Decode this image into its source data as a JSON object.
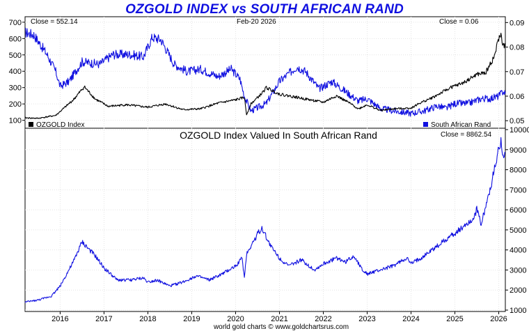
{
  "title": "OZGOLD INDEX vs SOUTH AFRICAN RAND",
  "footer": "world gold charts © www.goldchartsrus.com",
  "colors": {
    "title": "#1010e0",
    "ozgold": "#000000",
    "zar": "#1010e0",
    "valued": "#1010e0"
  },
  "chart_data": [
    {
      "type": "line",
      "title": "",
      "date_label": "Feb-20  2026",
      "x_ticks": [
        "2016",
        "2017",
        "2018",
        "2019",
        "2020",
        "2021",
        "2022",
        "2023",
        "2024",
        "2025",
        "2026"
      ],
      "x_range": [
        2015.2,
        2026.15
      ],
      "left_axis": {
        "ticks": [
          100,
          200,
          300,
          400,
          500,
          600,
          700
        ],
        "ylim": [
          60,
          725
        ]
      },
      "right_axis": {
        "ticks": [
          0.05,
          0.06,
          0.07,
          0.08,
          0.09
        ],
        "ylim": [
          0.0475,
          0.0918
        ]
      },
      "left_close": "Close = 552.14",
      "right_close": "Close = 0.06",
      "legend": [
        {
          "name": "OZGOLD Index",
          "color": "#000000"
        },
        {
          "name": "South African Rand",
          "color": "#1010e0"
        }
      ],
      "series": [
        {
          "name": "OZGOLD Index",
          "axis": "left",
          "x": [
            2015.2,
            2015.5,
            2015.9,
            2016.3,
            2016.55,
            2016.8,
            2017.1,
            2017.5,
            2018.0,
            2018.4,
            2018.8,
            2019.2,
            2019.6,
            2020.0,
            2020.2,
            2020.25,
            2020.35,
            2020.6,
            2020.7,
            2021.0,
            2021.3,
            2021.6,
            2022.0,
            2022.3,
            2022.6,
            2022.8,
            2023.0,
            2023.3,
            2023.6,
            2024.0,
            2024.2,
            2024.5,
            2024.9,
            2025.2,
            2025.5,
            2025.7,
            2025.9,
            2026.0,
            2026.05,
            2026.1,
            2026.15
          ],
          "values": [
            115,
            112,
            130,
            225,
            305,
            230,
            185,
            195,
            180,
            200,
            165,
            170,
            205,
            225,
            240,
            135,
            200,
            265,
            300,
            260,
            245,
            230,
            210,
            250,
            205,
            170,
            195,
            160,
            170,
            175,
            205,
            240,
            300,
            330,
            380,
            390,
            490,
            600,
            620,
            560,
            552
          ]
        },
        {
          "name": "South African Rand",
          "axis": "right",
          "x": [
            2015.2,
            2015.4,
            2015.7,
            2015.9,
            2016.0,
            2016.2,
            2016.5,
            2016.9,
            2017.2,
            2017.6,
            2017.9,
            2018.1,
            2018.3,
            2018.6,
            2018.9,
            2019.2,
            2019.6,
            2019.9,
            2020.1,
            2020.2,
            2020.35,
            2020.7,
            2021.0,
            2021.4,
            2021.6,
            2021.9,
            2022.2,
            2022.5,
            2022.8,
            2023.0,
            2023.3,
            2023.6,
            2024.0,
            2024.3,
            2024.6,
            2024.8,
            2025.0,
            2025.3,
            2025.6,
            2025.8,
            2026.0,
            2026.1,
            2026.15
          ],
          "values": [
            0.086,
            0.085,
            0.077,
            0.07,
            0.064,
            0.066,
            0.074,
            0.073,
            0.077,
            0.077,
            0.076,
            0.084,
            0.083,
            0.073,
            0.07,
            0.071,
            0.068,
            0.071,
            0.067,
            0.06,
            0.054,
            0.057,
            0.066,
            0.072,
            0.07,
            0.063,
            0.066,
            0.062,
            0.058,
            0.059,
            0.055,
            0.054,
            0.053,
            0.054,
            0.056,
            0.055,
            0.057,
            0.057,
            0.059,
            0.059,
            0.06,
            0.062,
            0.061
          ]
        }
      ]
    },
    {
      "type": "line",
      "title": "OZGOLD Index Valued In South African Rand",
      "close_label": "Close = 8862.54",
      "x_ticks": [
        "2016",
        "2017",
        "2018",
        "2019",
        "2020",
        "2021",
        "2022",
        "2023",
        "2024",
        "2025",
        "2026"
      ],
      "x_range": [
        2015.2,
        2026.15
      ],
      "right_axis": {
        "ticks": [
          1000,
          2000,
          3000,
          4000,
          5000,
          6000,
          7000,
          8000,
          9000,
          10000
        ],
        "ylim": [
          1000,
          10000
        ]
      },
      "series": [
        {
          "name": "OZGOLD Index Valued In South African Rand",
          "x": [
            2015.2,
            2015.5,
            2015.8,
            2016.0,
            2016.3,
            2016.5,
            2016.8,
            2017.0,
            2017.3,
            2017.6,
            2017.9,
            2018.0,
            2018.2,
            2018.5,
            2018.8,
            2019.1,
            2019.4,
            2019.7,
            2020.0,
            2020.15,
            2020.2,
            2020.25,
            2020.5,
            2020.6,
            2020.8,
            2021.0,
            2021.2,
            2021.5,
            2021.8,
            2022.0,
            2022.3,
            2022.5,
            2022.7,
            2022.9,
            2023.0,
            2023.3,
            2023.6,
            2023.9,
            2024.0,
            2024.3,
            2024.6,
            2024.9,
            2025.0,
            2025.2,
            2025.4,
            2025.5,
            2025.6,
            2025.8,
            2025.95,
            2026.05,
            2026.1,
            2026.15
          ],
          "values": [
            1400,
            1500,
            1700,
            2200,
            3400,
            4400,
            3700,
            3100,
            2500,
            2500,
            2600,
            2400,
            2500,
            2200,
            2400,
            2700,
            2500,
            2800,
            3200,
            3600,
            2600,
            3800,
            4800,
            5100,
            4200,
            3600,
            3200,
            3500,
            3000,
            3300,
            3600,
            3400,
            3700,
            3000,
            2800,
            3000,
            3200,
            3600,
            3300,
            3700,
            4200,
            4700,
            4800,
            5200,
            5500,
            6000,
            5300,
            7000,
            8500,
            9500,
            8700,
            8862
          ]
        }
      ]
    }
  ]
}
